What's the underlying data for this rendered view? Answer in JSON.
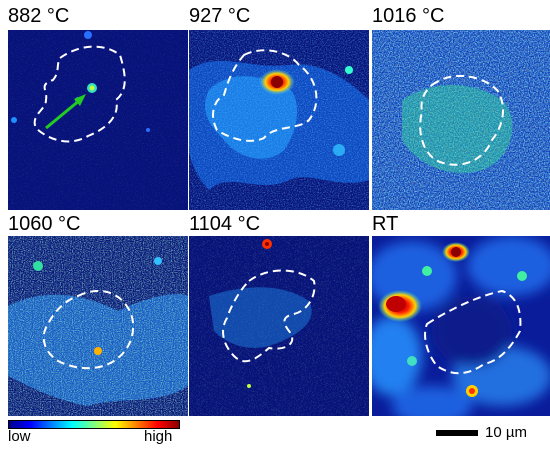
{
  "panels": [
    {
      "label": "882 °C"
    },
    {
      "label": "927 °C"
    },
    {
      "label": "1016 °C"
    },
    {
      "label": "1060 °C"
    },
    {
      "label": "1104 °C"
    },
    {
      "label": "RT"
    }
  ],
  "colorbar": {
    "low_label": "low",
    "high_label": "high",
    "colors": [
      "#00008b",
      "#0000ff",
      "#0080ff",
      "#00ffff",
      "#80ff80",
      "#ffff00",
      "#ff8000",
      "#ff0000",
      "#8b0000"
    ]
  },
  "scale_bar": {
    "label": "10 µm"
  },
  "colors": {
    "background_map": "#08137a",
    "boundary_line": "#ffffff",
    "arrow": "#22cc22"
  }
}
